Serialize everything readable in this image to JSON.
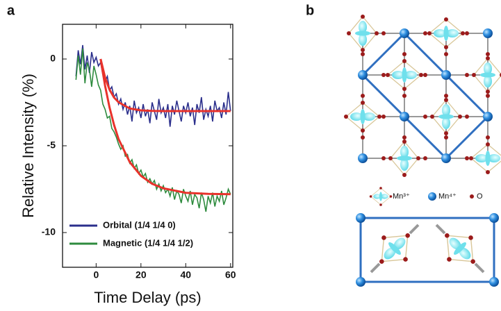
{
  "panel_a": {
    "label": "a"
  },
  "chart_data": {
    "type": "line",
    "x_label": "Time Delay (ps)",
    "y_label": "Relative Intensity (%)",
    "x": [
      -9,
      -8,
      -7,
      -6,
      -5,
      -4,
      -3,
      -2,
      -1,
      0,
      1,
      2,
      3,
      4,
      5,
      6,
      7,
      8,
      9,
      10,
      11,
      12,
      13,
      14,
      15,
      16,
      17,
      18,
      19,
      20,
      21,
      22,
      23,
      24,
      25,
      26,
      27,
      28,
      29,
      30,
      31,
      32,
      33,
      34,
      35,
      36,
      37,
      38,
      39,
      40,
      41,
      42,
      43,
      44,
      45,
      46,
      47,
      48,
      49,
      50,
      51,
      52,
      53,
      54,
      55,
      56,
      57,
      58,
      59,
      60
    ],
    "series": [
      {
        "name": "Orbital (1/4 1/4 0)",
        "color": "#2b2f8c",
        "values": [
          -1.0,
          0.5,
          -0.3,
          0.8,
          -0.6,
          0.2,
          -0.8,
          0.4,
          -0.2,
          0.1,
          -0.4,
          -0.2,
          -0.9,
          -1.3,
          -1.0,
          -1.8,
          -1.6,
          -2.2,
          -2.0,
          -2.6,
          -2.3,
          -2.9,
          -2.5,
          -3.2,
          -2.7,
          -3.6,
          -2.4,
          -3.1,
          -2.8,
          -3.4,
          -2.6,
          -3.3,
          -2.9,
          -3.7,
          -2.5,
          -3.0,
          -3.5,
          -2.3,
          -3.1,
          -2.8,
          -3.4,
          -2.6,
          -3.9,
          -2.7,
          -3.2,
          -2.4,
          -3.0,
          -3.6,
          -2.7,
          -3.1,
          -2.5,
          -3.3,
          -2.8,
          -3.8,
          -2.6,
          -3.1,
          -2.2,
          -3.5,
          -2.9,
          -3.3,
          -2.7,
          -3.6,
          -2.4,
          -3.0,
          -2.8,
          -3.4,
          -2.5,
          -3.2,
          -1.9,
          -3.0
        ]
      },
      {
        "name": "Magnetic (1/4 1/4 1/2)",
        "color": "#2e8b3e",
        "values": [
          -1.2,
          0.2,
          -0.9,
          0.6,
          -1.4,
          -0.2,
          -0.6,
          -1.6,
          -0.4,
          -0.9,
          -1.5,
          -1.8,
          -2.6,
          -2.9,
          -3.4,
          -3.3,
          -4.0,
          -4.2,
          -4.5,
          -4.9,
          -5.2,
          -5.0,
          -5.6,
          -5.5,
          -6.0,
          -5.8,
          -6.3,
          -6.1,
          -6.6,
          -6.4,
          -6.8,
          -6.6,
          -7.1,
          -6.9,
          -7.2,
          -7.0,
          -7.5,
          -7.2,
          -7.6,
          -7.3,
          -7.7,
          -7.5,
          -7.9,
          -7.4,
          -8.1,
          -7.6,
          -7.8,
          -8.3,
          -7.5,
          -7.9,
          -8.2,
          -7.6,
          -8.4,
          -7.8,
          -8.0,
          -8.6,
          -7.7,
          -8.1,
          -8.8,
          -7.9,
          -8.3,
          -7.7,
          -8.5,
          -7.9,
          -8.2,
          -7.6,
          -8.4,
          -8.0,
          -7.5,
          -7.8
        ]
      }
    ],
    "fits": [
      {
        "color": "#e8322b",
        "x": [
          2,
          4,
          6,
          8,
          10,
          15,
          20,
          25,
          30,
          40,
          50,
          60
        ],
        "values": [
          0,
          -1.07,
          -1.77,
          -2.22,
          -2.49,
          -2.85,
          -2.96,
          -2.99,
          -3.0,
          -3.0,
          -3.0,
          -3.0
        ]
      },
      {
        "color": "#e8322b",
        "x": [
          2,
          4,
          6,
          8,
          10,
          15,
          20,
          25,
          30,
          40,
          50,
          60
        ],
        "values": [
          0,
          -1.55,
          -2.8,
          -3.8,
          -4.61,
          -5.94,
          -6.73,
          -7.19,
          -7.45,
          -7.71,
          -7.77,
          -7.79
        ]
      }
    ],
    "xlim": [
      -15,
      61
    ],
    "ylim": [
      -12,
      2
    ],
    "xticks": [
      0,
      20,
      40,
      60
    ],
    "yticks": [
      0,
      -5,
      -10
    ],
    "legend": "lower left"
  },
  "panel_b": {
    "label": "b",
    "legend": [
      "Mn³⁺",
      "Mn⁴⁺",
      "O"
    ]
  }
}
